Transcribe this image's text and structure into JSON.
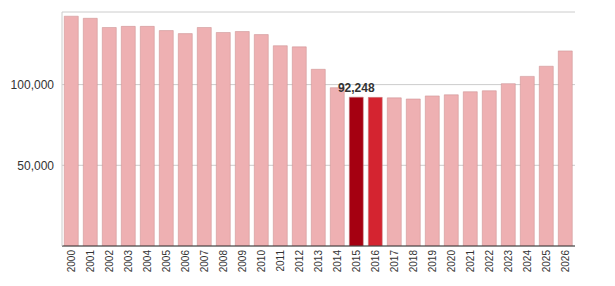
{
  "chart_data": {
    "type": "bar",
    "categories": [
      "2000",
      "2001",
      "2002",
      "2003",
      "2004",
      "2005",
      "2006",
      "2007",
      "2008",
      "2009",
      "2010",
      "2011",
      "2012",
      "2013",
      "2014",
      "2015",
      "2016",
      "2017",
      "2018",
      "2019",
      "2020",
      "2021",
      "2022",
      "2023",
      "2024",
      "2025",
      "2026"
    ],
    "values": [
      142400,
      141100,
      135400,
      136100,
      136100,
      133500,
      131600,
      135400,
      132300,
      132900,
      131000,
      124100,
      123400,
      109500,
      98100,
      92248,
      92100,
      91800,
      91100,
      93000,
      93700,
      95600,
      96200,
      100600,
      105100,
      111400,
      120900
    ],
    "value_labels": [
      null,
      null,
      null,
      null,
      null,
      null,
      null,
      null,
      null,
      null,
      null,
      null,
      null,
      null,
      null,
      "92,248",
      null,
      null,
      null,
      null,
      null,
      null,
      null,
      null,
      null,
      null,
      null
    ],
    "colors": [
      "#eeb0b2",
      "#eeb0b2",
      "#eeb0b2",
      "#eeb0b2",
      "#eeb0b2",
      "#eeb0b2",
      "#eeb0b2",
      "#eeb0b2",
      "#eeb0b2",
      "#eeb0b2",
      "#eeb0b2",
      "#eeb0b2",
      "#eeb0b2",
      "#eeb0b2",
      "#eeb0b2",
      "#a50011",
      "#d42430",
      "#eeb0b2",
      "#eeb0b2",
      "#eeb0b2",
      "#eeb0b2",
      "#eeb0b2",
      "#eeb0b2",
      "#eeb0b2",
      "#eeb0b2",
      "#eeb0b2",
      "#eeb0b2"
    ],
    "ylim": [
      0,
      145000
    ],
    "yticks": [
      {
        "value": 50000,
        "label": "50,000"
      },
      {
        "value": 100000,
        "label": "100,000"
      }
    ],
    "grid": true
  }
}
